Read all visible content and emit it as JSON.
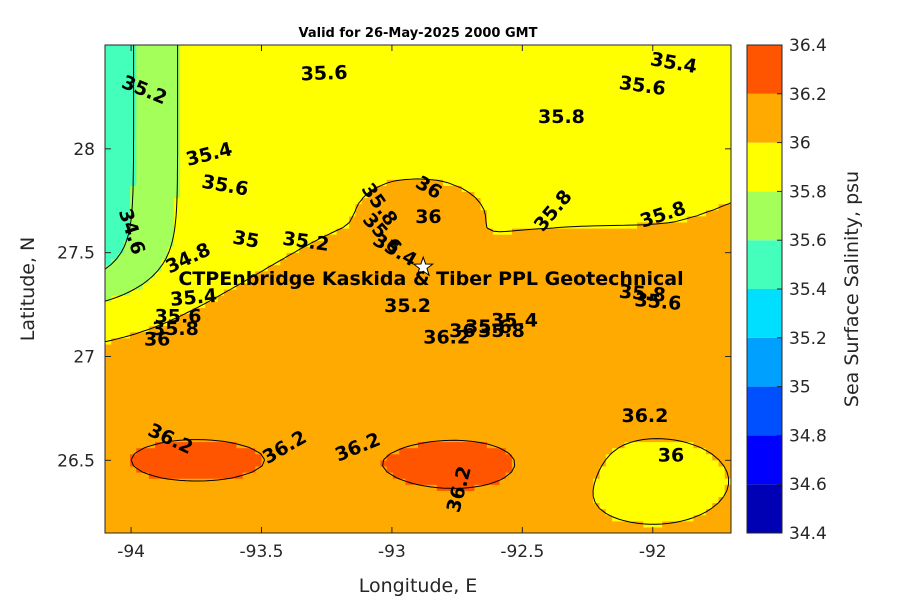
{
  "chart_data": {
    "type": "contour",
    "title": "Valid for 26-May-2025 2000 GMT",
    "xlabel": "Longitude, E",
    "ylabel": "Latitude, N",
    "xlim": [
      -94.1,
      -91.7
    ],
    "ylim": [
      26.15,
      28.5
    ],
    "x_ticks": [
      -94,
      -93.5,
      -93,
      -92.5,
      -92
    ],
    "x_tick_labels": [
      "-94",
      "-93.5",
      "-93",
      "-92.5",
      "-92"
    ],
    "y_ticks": [
      26.5,
      27,
      27.5,
      28
    ],
    "y_tick_labels": [
      "26.5",
      "27",
      "27.5",
      "28"
    ],
    "colorbar": {
      "label": "Sea Surface Salinity, psu",
      "levels": [
        34.4,
        34.6,
        34.8,
        35,
        35.2,
        35.4,
        35.6,
        35.8,
        36,
        36.2,
        36.4
      ],
      "tick_labels": [
        "34.4",
        "34.6",
        "34.8",
        "35",
        "35.2",
        "35.4",
        "35.6",
        "35.8",
        "36",
        "36.2",
        "36.4"
      ],
      "colors": [
        "#0000b4",
        "#0000ff",
        "#0050ff",
        "#00a0ff",
        "#00dfff",
        "#44ffbb",
        "#a5ff5a",
        "#ffff00",
        "#ffaa00",
        "#ff5500"
      ]
    },
    "contour_labels": [
      {
        "text": "35.4",
        "x": -91.92,
        "y": 28.41,
        "angle": 10
      },
      {
        "text": "35.6",
        "x": -93.26,
        "y": 28.36,
        "angle": -2
      },
      {
        "text": "35.6",
        "x": -92.04,
        "y": 28.3,
        "angle": 8
      },
      {
        "text": "35.2",
        "x": -93.95,
        "y": 28.28,
        "angle": 22
      },
      {
        "text": "35.8",
        "x": -92.35,
        "y": 28.15,
        "angle": 0
      },
      {
        "text": "35.4",
        "x": -93.7,
        "y": 27.97,
        "angle": -14
      },
      {
        "text": "35.6",
        "x": -93.64,
        "y": 27.82,
        "angle": 10
      },
      {
        "text": "36",
        "x": -92.86,
        "y": 27.81,
        "angle": 30
      },
      {
        "text": "35.8",
        "x": -93.05,
        "y": 27.73,
        "angle": 55
      },
      {
        "text": "36",
        "x": -92.86,
        "y": 27.67,
        "angle": 0
      },
      {
        "text": "35.8",
        "x": -92.38,
        "y": 27.7,
        "angle": -50
      },
      {
        "text": "35.8",
        "x": -91.96,
        "y": 27.68,
        "angle": -18
      },
      {
        "text": "34.6",
        "x": -94.0,
        "y": 27.6,
        "angle": 72
      },
      {
        "text": "35",
        "x": -93.56,
        "y": 27.56,
        "angle": 10
      },
      {
        "text": "35.2",
        "x": -93.33,
        "y": 27.55,
        "angle": 8
      },
      {
        "text": "35.6",
        "x": -93.04,
        "y": 27.59,
        "angle": 48
      },
      {
        "text": "35.4",
        "x": -92.99,
        "y": 27.51,
        "angle": 30
      },
      {
        "text": "34.8",
        "x": -93.78,
        "y": 27.47,
        "angle": -25
      },
      {
        "text": "35.8",
        "x": -92.04,
        "y": 27.3,
        "angle": 5
      },
      {
        "text": "35.6",
        "x": -91.98,
        "y": 27.26,
        "angle": 5
      },
      {
        "text": "35.4",
        "x": -93.76,
        "y": 27.28,
        "angle": -5
      },
      {
        "text": "35.2",
        "x": -92.94,
        "y": 27.24,
        "angle": 0
      },
      {
        "text": "35.6",
        "x": -93.82,
        "y": 27.19,
        "angle": 0
      },
      {
        "text": "35.8",
        "x": -93.83,
        "y": 27.13,
        "angle": 0
      },
      {
        "text": "35.4",
        "x": -92.53,
        "y": 27.17,
        "angle": 0
      },
      {
        "text": "35.6",
        "x": -92.63,
        "y": 27.14,
        "angle": 0
      },
      {
        "text": "35.8",
        "x": -92.58,
        "y": 27.12,
        "angle": 0
      },
      {
        "text": "36",
        "x": -92.73,
        "y": 27.12,
        "angle": 0
      },
      {
        "text": "36.2",
        "x": -92.79,
        "y": 27.09,
        "angle": 0
      },
      {
        "text": "36",
        "x": -93.9,
        "y": 27.08,
        "angle": 0
      },
      {
        "text": "36.2",
        "x": -92.03,
        "y": 26.71,
        "angle": 0
      },
      {
        "text": "36.2",
        "x": -93.85,
        "y": 26.6,
        "angle": 25
      },
      {
        "text": "36.2",
        "x": -93.41,
        "y": 26.56,
        "angle": -30
      },
      {
        "text": "36.2",
        "x": -93.13,
        "y": 26.56,
        "angle": -22
      },
      {
        "text": "36",
        "x": -91.93,
        "y": 26.52,
        "angle": 0
      },
      {
        "text": "36.2",
        "x": -92.74,
        "y": 26.36,
        "angle": -75
      }
    ],
    "annotation": {
      "text": "CTPEnbridge  Kaskida & Tiber PPL Geotechnical",
      "marker": "star",
      "x": -92.88,
      "y": 27.43
    }
  }
}
